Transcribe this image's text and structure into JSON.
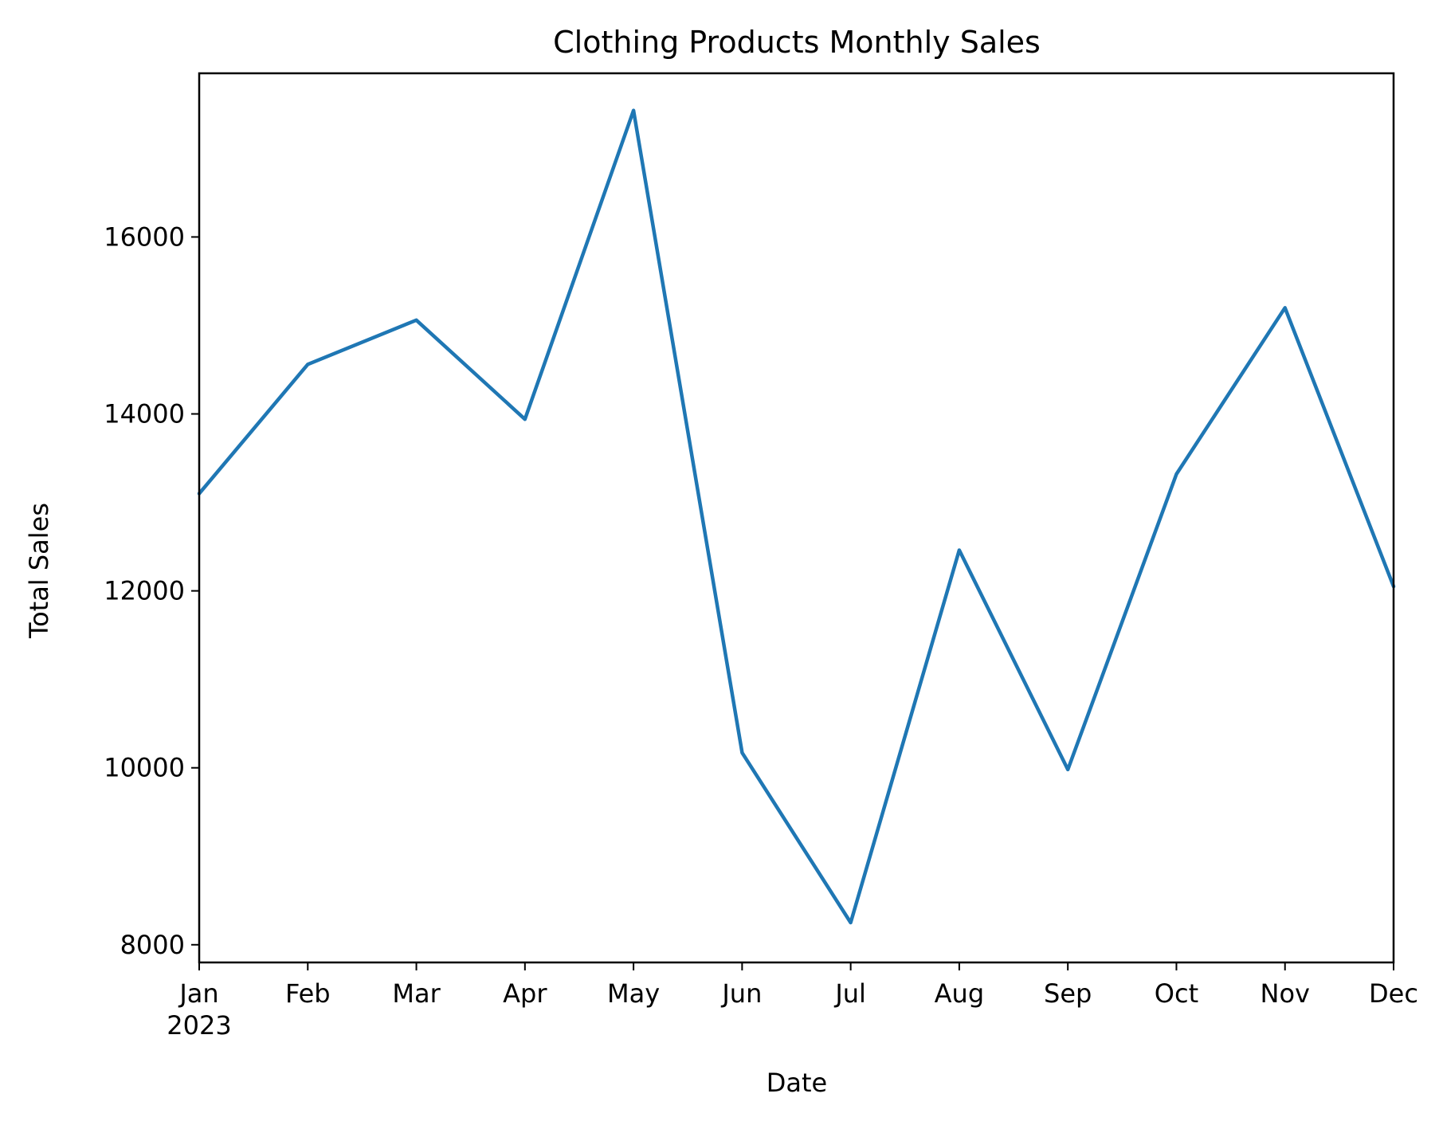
{
  "chart_data": {
    "type": "line",
    "title": "Clothing Products Monthly Sales",
    "xlabel": "Date",
    "ylabel": "Total Sales",
    "x": [
      "2023-01",
      "2023-02",
      "2023-03",
      "2023-04",
      "2023-05",
      "2023-06",
      "2023-07",
      "2023-08",
      "2023-09",
      "2023-10",
      "2023-11",
      "2023-12"
    ],
    "x_tick_labels": [
      "Jan",
      "Feb",
      "Mar",
      "Apr",
      "May",
      "Jun",
      "Jul",
      "Aug",
      "Sep",
      "Oct",
      "Nov",
      "Dec"
    ],
    "x_year_label": "2023",
    "series": [
      {
        "values": [
          13100,
          14560,
          15060,
          13940,
          17430,
          10170,
          8250,
          12460,
          9980,
          13320,
          15200,
          12050
        ],
        "color": "#1f77b4"
      }
    ],
    "y_ticks": [
      8000,
      10000,
      12000,
      14000,
      16000
    ],
    "ylim": [
      7800,
      17850
    ],
    "grid": false,
    "legend": "none"
  }
}
